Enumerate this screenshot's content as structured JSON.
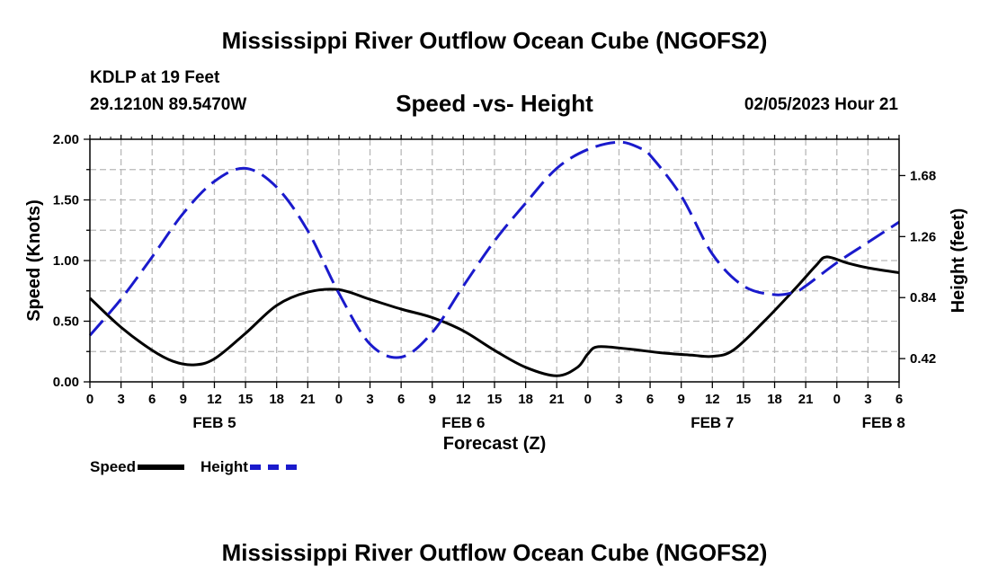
{
  "titles": {
    "main": "Mississippi River Outflow Ocean Cube (NGOFS2)",
    "footer": "Mississippi River Outflow Ocean Cube (NGOFS2)",
    "station": "KDLP at 19 Feet",
    "coords": "29.1210N  89.5470W",
    "subtitle": "Speed -vs- Height",
    "datetime": "02/05/2023 Hour 21"
  },
  "legend": {
    "speed": "Speed",
    "height": "Height"
  },
  "colors": {
    "speed": "#000000",
    "height": "#1a1acc",
    "grid": "#b8b8b8"
  },
  "chart_data": {
    "type": "line",
    "title": "Speed -vs- Height",
    "xlabel": "Forecast (Z)",
    "ylabel": "Speed (Knots)",
    "y2label": "Height (feet)",
    "xlim": [
      0,
      78
    ],
    "ylim": [
      0,
      2.0
    ],
    "y2lim": [
      0.26,
      1.93
    ],
    "yticks": [
      "0.00",
      "0.50",
      "1.00",
      "1.50",
      "2.00"
    ],
    "y2ticks": [
      "0.42",
      "0.84",
      "1.26",
      "1.68"
    ],
    "xtick_labels": [
      "0",
      "3",
      "6",
      "9",
      "12",
      "15",
      "18",
      "21",
      "0",
      "3",
      "6",
      "9",
      "12",
      "15",
      "18",
      "21",
      "0",
      "3",
      "6",
      "9",
      "12",
      "15",
      "18",
      "21",
      "0",
      "3",
      "6"
    ],
    "day_labels": [
      {
        "label": "FEB 5",
        "x": 12
      },
      {
        "label": "FEB 6",
        "x": 36
      },
      {
        "label": "FEB 7",
        "x": 60
      },
      {
        "label": "FEB 8",
        "x": 76.5
      }
    ],
    "grid": true,
    "series": [
      {
        "name": "Speed",
        "axis": "left",
        "style": "solid",
        "x": [
          0,
          3,
          6,
          8,
          10,
          12,
          15,
          18,
          21,
          24,
          27,
          30,
          33,
          36,
          39,
          42,
          45,
          47,
          48,
          49,
          52,
          55,
          58,
          60,
          62,
          65,
          68,
          70,
          71,
          73,
          75,
          78
        ],
        "values": [
          0.69,
          0.45,
          0.26,
          0.17,
          0.14,
          0.19,
          0.4,
          0.63,
          0.74,
          0.76,
          0.68,
          0.6,
          0.53,
          0.42,
          0.26,
          0.12,
          0.05,
          0.12,
          0.23,
          0.29,
          0.27,
          0.24,
          0.22,
          0.21,
          0.26,
          0.5,
          0.77,
          0.96,
          1.03,
          0.98,
          0.94,
          0.9
        ]
      },
      {
        "name": "Height",
        "axis": "right",
        "style": "dashed",
        "x": [
          0,
          3,
          6,
          9,
          12,
          15,
          18,
          21,
          24,
          27,
          30,
          33,
          36,
          39,
          42,
          45,
          48,
          51,
          53,
          54,
          57,
          60,
          63,
          66,
          68,
          69,
          72,
          75,
          78
        ],
        "values": [
          0.58,
          0.83,
          1.12,
          1.42,
          1.64,
          1.73,
          1.6,
          1.3,
          0.87,
          0.52,
          0.43,
          0.6,
          0.92,
          1.23,
          1.49,
          1.73,
          1.86,
          1.91,
          1.87,
          1.82,
          1.54,
          1.14,
          0.92,
          0.86,
          0.88,
          0.92,
          1.08,
          1.22,
          1.36
        ]
      }
    ]
  }
}
